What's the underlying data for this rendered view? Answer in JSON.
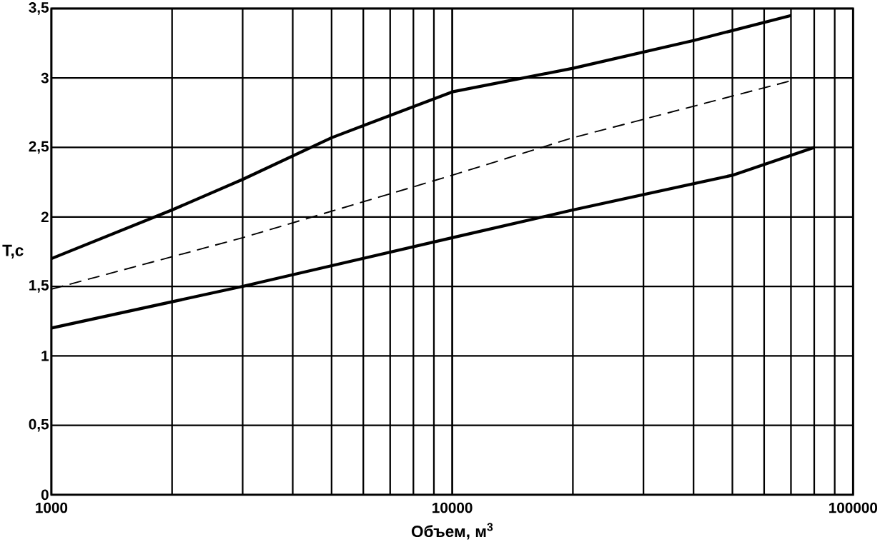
{
  "chart_data": {
    "type": "line",
    "xlabel": "Объем, м$^{3}$",
    "ylabel": "T,c",
    "log": "x",
    "grid": true,
    "xlim": [
      1000,
      100000
    ],
    "xticks": [
      1000,
      10000,
      100000
    ],
    "ylim": [
      0,
      3.5
    ],
    "yticks": [
      0,
      {
        "value": 0.5,
        "label": "0,5"
      },
      1,
      {
        "value": 1.5,
        "label": "1,5"
      },
      2,
      {
        "value": 2.5,
        "label": "2,5"
      },
      3,
      {
        "value": 3.5,
        "label": "3,5"
      }
    ],
    "series": [
      {
        "color": "#000000",
        "line_style": "solid",
        "x": [
          1000,
          2000,
          3000,
          5000,
          10000,
          20000,
          40000,
          70000
        ],
        "values": [
          1.7,
          2.05,
          2.27,
          2.57,
          2.9,
          3.07,
          3.27,
          3.45
        ]
      },
      {
        "color": "#000000",
        "line_style": "dashed",
        "x": [
          1000,
          3000,
          10000,
          20000,
          70000
        ],
        "values": [
          1.48,
          1.85,
          2.3,
          2.57,
          2.98
        ]
      },
      {
        "color": "#000000",
        "line_style": "solid",
        "x": [
          1000,
          3000,
          10000,
          20000,
          50000,
          80000
        ],
        "values": [
          1.2,
          1.5,
          1.85,
          2.05,
          2.3,
          2.5
        ]
      }
    ]
  }
}
